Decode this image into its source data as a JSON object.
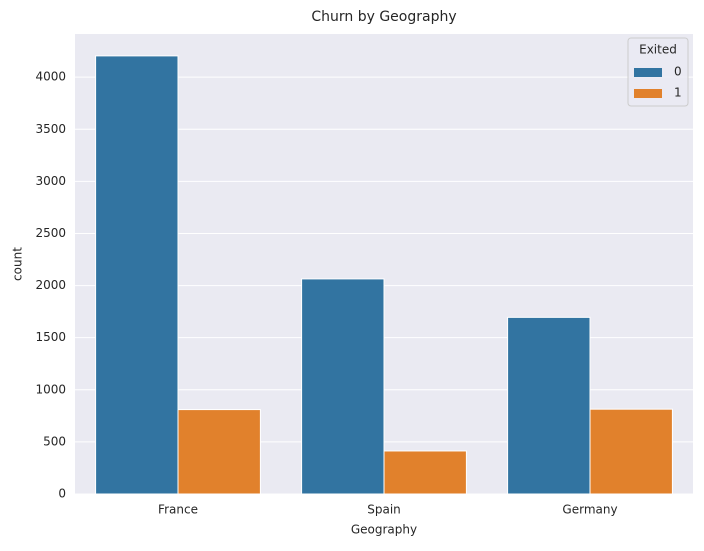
{
  "chart_data": {
    "type": "bar",
    "title": "Churn by Geography",
    "x_label": "Geography",
    "y_label": "count",
    "categories": [
      "France",
      "Spain",
      "Germany"
    ],
    "legend_title": "Exited",
    "series": [
      {
        "name": "0",
        "color": "#3274a1",
        "values": [
          4204,
          2064,
          1695
        ]
      },
      {
        "name": "1",
        "color": "#e1812c",
        "values": [
          810,
          413,
          814
        ]
      }
    ],
    "ylim": [
      0,
      4414
    ],
    "yticks": [
      0,
      500,
      1000,
      1500,
      2000,
      2500,
      3000,
      3500,
      4000
    ],
    "grid": true,
    "legend": "upper right"
  }
}
